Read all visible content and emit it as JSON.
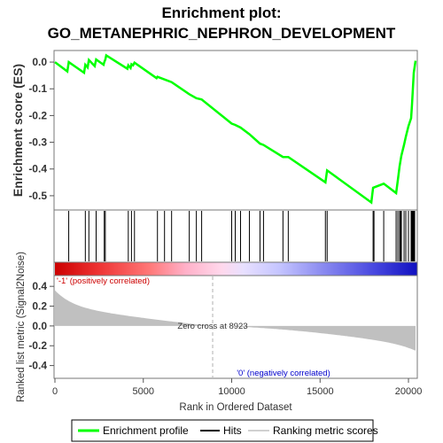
{
  "chart_data": {
    "type": "line",
    "title": "Enrichment plot:",
    "subtitle": "GO_METANEPHRIC_NEPHRON_DEVELOPMENT",
    "xlabel": "Rank in Ordered Dataset",
    "top_ylabel": "Enrichment score (ES)",
    "bottom_ylabel": "Ranked list metric (Signal2Noise)",
    "xlim": [
      0,
      20500
    ],
    "x_ticks": [
      0,
      5000,
      10000,
      15000,
      20000
    ],
    "es_ylim": [
      -0.55,
      0.04
    ],
    "es_ticks": [
      0.0,
      -0.1,
      -0.2,
      -0.3,
      -0.4,
      -0.5
    ],
    "es_tick_labels": [
      "0.0",
      "-0.1",
      "-0.2",
      "-0.3",
      "-0.4",
      "-0.5"
    ],
    "metric_ylim": [
      -0.52,
      0.5
    ],
    "metric_ticks": [
      0.4,
      0.2,
      0.0,
      -0.2,
      -0.4
    ],
    "metric_tick_labels": [
      "0.4",
      "0.2",
      "0.0",
      "-0.2",
      "-0.4"
    ],
    "es_curve": {
      "x": [
        0,
        700,
        780,
        1650,
        1720,
        1850,
        1920,
        2250,
        2330,
        2750,
        2790,
        2850,
        2900,
        4100,
        4150,
        4280,
        4330,
        4420,
        4500,
        5750,
        5800,
        6200,
        6600,
        7600,
        8000,
        8300,
        10000,
        10200,
        10500,
        11000,
        11600,
        11800,
        12900,
        13200,
        15300,
        15400,
        17900,
        18000,
        18600,
        19300,
        19400,
        19500,
        19600,
        19750,
        19850,
        20000,
        20150,
        20200,
        20250,
        20300,
        20400
      ],
      "y": [
        0.0,
        -0.035,
        0.0,
        -0.04,
        -0.01,
        -0.02,
        0.008,
        -0.015,
        0.01,
        -0.01,
        0.0,
        0.01,
        0.025,
        -0.025,
        -0.012,
        -0.022,
        -0.008,
        -0.012,
        -0.002,
        -0.06,
        -0.055,
        -0.065,
        -0.075,
        -0.12,
        -0.135,
        -0.14,
        -0.23,
        -0.235,
        -0.245,
        -0.27,
        -0.305,
        -0.31,
        -0.355,
        -0.355,
        -0.45,
        -0.405,
        -0.525,
        -0.47,
        -0.455,
        -0.49,
        -0.44,
        -0.39,
        -0.35,
        -0.31,
        -0.28,
        -0.24,
        -0.21,
        -0.16,
        -0.1,
        -0.04,
        0.005
      ]
    },
    "hits": [
      780,
      1720,
      1920,
      2330,
      2790,
      2850,
      4150,
      4330,
      4500,
      5800,
      6200,
      6600,
      7600,
      8000,
      8300,
      10000,
      10200,
      10500,
      11000,
      11600,
      11800,
      12900,
      13200,
      15300,
      15400,
      18000,
      18050,
      18600,
      19300,
      19400,
      19500,
      19550,
      19600,
      19750,
      19850,
      20000,
      20150,
      20200,
      20250,
      20300,
      20350
    ],
    "zero_cross": 8923,
    "zero_cross_label": "Zero cross at 8923",
    "pos_label": "'-1' (positively correlated)",
    "neg_label": "'0' (negatively correlated)",
    "legend": [
      "Enrichment profile",
      "Hits",
      "Ranking metric scores"
    ],
    "colors": {
      "es_line": "#00ff00",
      "hit": "#000000",
      "metric_fill": "#c0c0c0",
      "pos_label": "#cc0000",
      "neg_label": "#0000cc",
      "zero_line": "#b0b0b0"
    }
  }
}
